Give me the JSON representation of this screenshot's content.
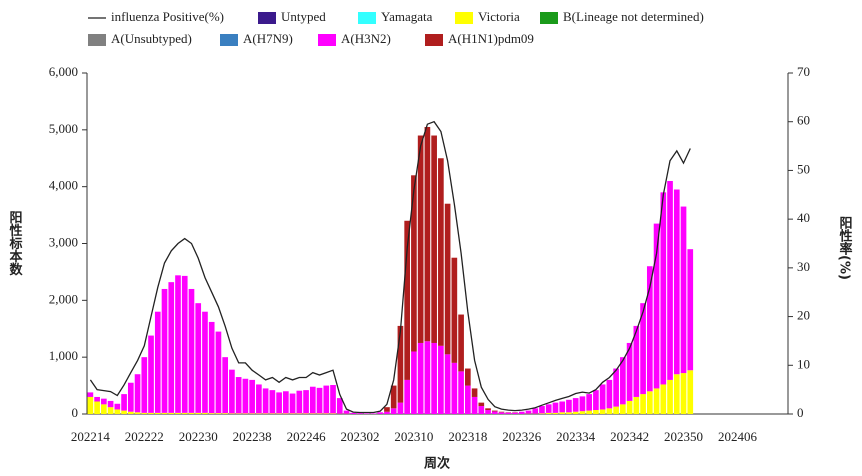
{
  "chart_data": {
    "type": "bar",
    "y_label": "阳性标本数",
    "y2_label": "阳性率(%)",
    "x_label": "周次",
    "categories": [
      "202214",
      null,
      null,
      null,
      null,
      null,
      null,
      null,
      "202222",
      null,
      null,
      null,
      null,
      null,
      null,
      null,
      "202230",
      null,
      null,
      null,
      null,
      null,
      null,
      null,
      "202238",
      null,
      null,
      null,
      null,
      null,
      null,
      null,
      "202246",
      null,
      null,
      null,
      null,
      null,
      null,
      null,
      "202302",
      null,
      null,
      null,
      null,
      null,
      null,
      null,
      "202310",
      null,
      null,
      null,
      null,
      null,
      null,
      null,
      "202318",
      null,
      null,
      null,
      null,
      null,
      null,
      null,
      "202326",
      null,
      null,
      null,
      null,
      null,
      null,
      null,
      "202334",
      null,
      null,
      null,
      null,
      null,
      null,
      null,
      "202342",
      null,
      null,
      null,
      null,
      null,
      null,
      null,
      "202350",
      null,
      null,
      null,
      null,
      null,
      null,
      null,
      "202406",
      null,
      null,
      null,
      null,
      null,
      null,
      null
    ],
    "ylim": [
      0,
      6000
    ],
    "yticks": [
      0,
      {
        "value": 1000,
        "label": "1,000"
      },
      {
        "value": 2000,
        "label": "2,000"
      },
      {
        "value": 3000,
        "label": "3,000"
      },
      {
        "value": 4000,
        "label": "4,000"
      },
      {
        "value": 5000,
        "label": "5,000"
      },
      {
        "value": 6000,
        "label": "6,000"
      }
    ],
    "y2lim": [
      0,
      70
    ],
    "y2ticks": [
      0,
      10,
      20,
      30,
      40,
      50,
      60,
      70
    ],
    "series": [
      {
        "name": "influenza Positive(%)",
        "type": "line",
        "axis": "y2",
        "color": "#222222",
        "values": [
          7,
          5,
          4.8,
          4.6,
          3.8,
          6,
          8.5,
          11,
          14,
          20,
          26,
          31,
          33.5,
          35,
          36,
          35,
          32,
          28,
          25,
          22,
          18,
          13.5,
          10.5,
          10.5,
          9,
          8,
          7,
          7.5,
          6.5,
          7.5,
          7,
          7.5,
          7.5,
          8.5,
          8,
          8.5,
          9,
          4,
          1,
          0.4,
          0.3,
          0.3,
          0.3,
          0.6,
          2,
          7,
          17,
          34,
          46,
          55,
          59.5,
          60,
          58,
          52,
          43,
          33,
          21,
          11,
          5.5,
          3,
          1.5,
          1,
          0.8,
          0.7,
          0.8,
          1,
          1.3,
          1.8,
          2.3,
          2.8,
          3.2,
          3.6,
          4.2,
          4.5,
          4.3,
          5,
          6.5,
          7.5,
          9,
          11,
          13.5,
          17,
          21,
          26,
          33,
          45,
          52,
          54,
          51.5,
          54.5,
          null,
          null,
          null,
          null,
          null,
          null,
          null,
          null,
          null,
          null,
          null,
          null,
          null,
          null
        ]
      },
      {
        "name": "Untyped",
        "type": "bar",
        "color": "#3b1a8c",
        "values": [
          0,
          0,
          0,
          0,
          0,
          0,
          0,
          0,
          0,
          0,
          0,
          0,
          0,
          0,
          0,
          0,
          0,
          0,
          0,
          0,
          0,
          0,
          0,
          0,
          0,
          0,
          0,
          0,
          0,
          0,
          0,
          0,
          0,
          0,
          0,
          0,
          0,
          0,
          0,
          0,
          0,
          0,
          0,
          0,
          0,
          0,
          0,
          0,
          0,
          0,
          0,
          0,
          0,
          0,
          0,
          0,
          0,
          0,
          0,
          0,
          0,
          0,
          0,
          0,
          0,
          0,
          0,
          0,
          0,
          0,
          0,
          0,
          0,
          0,
          0,
          0,
          0,
          0,
          0,
          0,
          0,
          0,
          0,
          0,
          0,
          0,
          0,
          0,
          0,
          0,
          null,
          null,
          null,
          null,
          null,
          null,
          null,
          null,
          null,
          null,
          null,
          null,
          null,
          null
        ]
      },
      {
        "name": "Yamagata",
        "type": "bar",
        "color": "#33ffff",
        "values": [
          0,
          0,
          0,
          0,
          0,
          0,
          0,
          0,
          0,
          0,
          0,
          0,
          0,
          0,
          0,
          0,
          0,
          0,
          0,
          0,
          0,
          0,
          0,
          0,
          0,
          0,
          0,
          0,
          0,
          0,
          0,
          0,
          0,
          0,
          0,
          0,
          0,
          0,
          0,
          0,
          0,
          0,
          0,
          0,
          0,
          0,
          0,
          0,
          0,
          0,
          0,
          0,
          0,
          0,
          0,
          0,
          0,
          0,
          0,
          0,
          0,
          0,
          0,
          0,
          0,
          0,
          0,
          0,
          0,
          0,
          0,
          0,
          0,
          0,
          0,
          0,
          0,
          0,
          0,
          0,
          0,
          0,
          0,
          0,
          0,
          0,
          0,
          0,
          0,
          0,
          null,
          null,
          null,
          null,
          null,
          null,
          null,
          null,
          null,
          null,
          null,
          null,
          null,
          null
        ]
      },
      {
        "name": "Victoria",
        "type": "bar",
        "color": "#ffff00",
        "values": [
          300,
          220,
          170,
          120,
          80,
          60,
          40,
          30,
          20,
          20,
          20,
          20,
          20,
          20,
          20,
          20,
          20,
          20,
          15,
          15,
          15,
          10,
          10,
          10,
          10,
          10,
          10,
          10,
          10,
          10,
          10,
          10,
          10,
          10,
          10,
          10,
          10,
          5,
          5,
          0,
          0,
          0,
          0,
          0,
          0,
          0,
          0,
          0,
          0,
          0,
          0,
          0,
          0,
          0,
          0,
          0,
          0,
          0,
          0,
          0,
          0,
          0,
          0,
          0,
          0,
          5,
          5,
          10,
          20,
          20,
          30,
          30,
          40,
          50,
          60,
          70,
          80,
          100,
          130,
          170,
          230,
          300,
          350,
          400,
          450,
          520,
          600,
          700,
          720,
          770,
          null,
          null,
          null,
          null,
          null,
          null,
          null,
          null,
          null,
          null,
          null,
          null,
          null,
          null
        ]
      },
      {
        "name": "B(Lineage not determined)",
        "type": "bar",
        "color": "#1a9a1a",
        "values": [
          0,
          0,
          0,
          0,
          0,
          0,
          0,
          0,
          0,
          0,
          0,
          0,
          0,
          0,
          0,
          0,
          0,
          0,
          0,
          0,
          0,
          0,
          0,
          0,
          0,
          0,
          0,
          0,
          0,
          0,
          0,
          0,
          0,
          0,
          0,
          0,
          0,
          0,
          0,
          0,
          0,
          0,
          0,
          0,
          0,
          0,
          0,
          0,
          0,
          0,
          0,
          0,
          0,
          0,
          0,
          0,
          0,
          0,
          0,
          0,
          0,
          0,
          0,
          0,
          0,
          0,
          0,
          0,
          0,
          0,
          0,
          0,
          0,
          0,
          0,
          0,
          0,
          0,
          0,
          0,
          0,
          0,
          0,
          0,
          0,
          0,
          0,
          0,
          0,
          0,
          null,
          null,
          null,
          null,
          null,
          null,
          null,
          null,
          null,
          null,
          null,
          null,
          null,
          null
        ]
      },
      {
        "name": "A(Unsubtyped)",
        "type": "bar",
        "color": "#808080",
        "values": [
          0,
          0,
          0,
          0,
          0,
          0,
          0,
          0,
          0,
          0,
          0,
          0,
          0,
          0,
          0,
          0,
          0,
          0,
          0,
          0,
          0,
          0,
          0,
          0,
          0,
          0,
          0,
          0,
          0,
          0,
          0,
          0,
          0,
          0,
          0,
          0,
          0,
          0,
          0,
          0,
          0,
          0,
          0,
          0,
          0,
          0,
          0,
          0,
          0,
          0,
          0,
          0,
          0,
          0,
          0,
          0,
          0,
          0,
          0,
          0,
          0,
          0,
          0,
          0,
          0,
          0,
          0,
          0,
          0,
          0,
          0,
          0,
          0,
          0,
          0,
          0,
          0,
          0,
          0,
          0,
          0,
          0,
          0,
          0,
          0,
          0,
          0,
          0,
          0,
          0,
          null,
          null,
          null,
          null,
          null,
          null,
          null,
          null,
          null,
          null,
          null,
          null,
          null,
          null
        ]
      },
      {
        "name": "A(H7N9)",
        "type": "bar",
        "color": "#3a7fc0",
        "values": [
          0,
          0,
          0,
          0,
          0,
          0,
          0,
          0,
          0,
          0,
          0,
          0,
          0,
          0,
          0,
          0,
          0,
          0,
          0,
          0,
          0,
          0,
          0,
          0,
          0,
          0,
          0,
          0,
          0,
          0,
          0,
          0,
          0,
          0,
          0,
          0,
          0,
          0,
          0,
          0,
          0,
          0,
          0,
          0,
          0,
          0,
          0,
          0,
          0,
          0,
          0,
          0,
          0,
          0,
          0,
          0,
          0,
          0,
          0,
          0,
          0,
          0,
          0,
          0,
          0,
          0,
          0,
          0,
          0,
          0,
          0,
          0,
          0,
          0,
          0,
          0,
          0,
          0,
          0,
          0,
          0,
          0,
          0,
          0,
          0,
          0,
          0,
          0,
          0,
          0,
          null,
          null,
          null,
          null,
          null,
          null,
          null,
          null,
          null,
          null,
          null,
          null,
          null,
          null
        ]
      },
      {
        "name": "A(H3N2)",
        "type": "bar",
        "color": "#ff00ff",
        "values": [
          80,
          80,
          100,
          110,
          100,
          290,
          510,
          670,
          980,
          1360,
          1780,
          2180,
          2300,
          2420,
          2410,
          2180,
          1930,
          1780,
          1605,
          1435,
          985,
          770,
          640,
          610,
          590,
          510,
          440,
          410,
          370,
          390,
          350,
          400,
          410,
          470,
          450,
          490,
          500,
          275,
          55,
          20,
          15,
          10,
          10,
          30,
          40,
          100,
          200,
          600,
          1100,
          1250,
          1280,
          1250,
          1200,
          1050,
          900,
          750,
          500,
          300,
          140,
          70,
          45,
          30,
          25,
          25,
          40,
          55,
          95,
          130,
          150,
          180,
          190,
          220,
          240,
          260,
          290,
          350,
          440,
          500,
          670,
          830,
          1020,
          1250,
          1600,
          2200,
          2900,
          3380,
          3500,
          3250,
          2930,
          2130,
          null,
          null,
          null,
          null,
          null,
          null,
          null,
          null,
          null,
          null,
          null,
          null,
          null,
          null
        ]
      },
      {
        "name": "A(H1N1)pdm09",
        "type": "bar",
        "color": "#b01e1e",
        "values": [
          0,
          0,
          0,
          0,
          0,
          0,
          0,
          0,
          0,
          0,
          0,
          0,
          0,
          0,
          0,
          0,
          0,
          0,
          0,
          0,
          0,
          0,
          0,
          0,
          0,
          0,
          0,
          0,
          0,
          0,
          0,
          0,
          0,
          0,
          0,
          0,
          0,
          0,
          0,
          0,
          0,
          0,
          0,
          0,
          80,
          400,
          1350,
          2800,
          3100,
          3650,
          3770,
          3650,
          3300,
          2650,
          1850,
          1000,
          300,
          150,
          60,
          30,
          15,
          10,
          5,
          5,
          0,
          0,
          0,
          0,
          0,
          0,
          0,
          0,
          0,
          0,
          0,
          0,
          0,
          0,
          0,
          0,
          0,
          0,
          0,
          0,
          0,
          0,
          0,
          0,
          0,
          0,
          null,
          null,
          null,
          null,
          null,
          null,
          null,
          null,
          null,
          null,
          null,
          null,
          null,
          null
        ]
      }
    ]
  }
}
